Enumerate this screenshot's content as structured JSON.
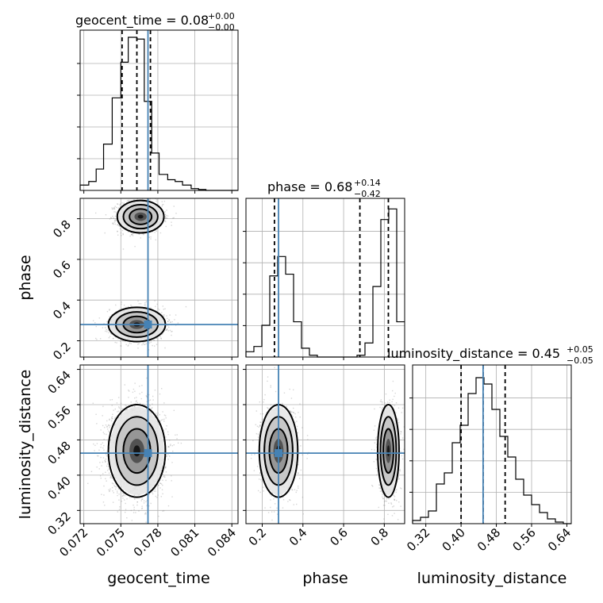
{
  "chart_data": {
    "type": "corner",
    "grid": true,
    "truth_color": "#4682b4",
    "truth": {
      "geocent_time": 0.0772,
      "phase": 0.28,
      "luminosity_distance": 0.45
    },
    "parameters": [
      {
        "name": "geocent_time",
        "xlabel": "geocent_time",
        "title": {
          "prefix": "geocent_time = ",
          "value": "0.08",
          "plus": "+0.00",
          "minus": "−0.00"
        },
        "range": [
          0.0717,
          0.0845
        ],
        "ticks": [
          0.072,
          0.075,
          0.078,
          0.081,
          0.084
        ],
        "tick_labels": [
          "0.072",
          "0.075",
          "0.078",
          "0.081",
          "0.084"
        ],
        "quantiles": [
          0.0751,
          0.0763,
          0.0774
        ],
        "hist_bins": [
          0.0717,
          0.0724,
          0.073,
          0.0736,
          0.0743,
          0.075,
          0.0756,
          0.0763,
          0.0769,
          0.0775,
          0.0781,
          0.0788,
          0.0794,
          0.08,
          0.0807,
          0.0813,
          0.0819,
          0.0826,
          0.0832,
          0.0838,
          0.0845
        ],
        "hist_counts": [
          3,
          5,
          12,
          26,
          52,
          72,
          86,
          85,
          50,
          21,
          9,
          6,
          5,
          3,
          1,
          0.5,
          0,
          0,
          0,
          0
        ],
        "hist_ymax": 90
      },
      {
        "name": "phase",
        "xlabel": "phase",
        "ylabel": "phase",
        "title": {
          "prefix": "phase = ",
          "value": "0.68",
          "plus": "+0.14",
          "minus": "−0.42"
        },
        "range": [
          0.12,
          0.9
        ],
        "ticks": [
          0.2,
          0.4,
          0.6,
          0.8
        ],
        "tick_labels": [
          "0.2",
          "0.4",
          "0.6",
          "0.8"
        ],
        "quantiles": [
          0.26,
          0.68,
          0.82
        ],
        "hist_bins": [
          0.12,
          0.159,
          0.198,
          0.237,
          0.276,
          0.315,
          0.354,
          0.393,
          0.432,
          0.471,
          0.51,
          0.549,
          0.588,
          0.627,
          0.666,
          0.705,
          0.744,
          0.783,
          0.822,
          0.861,
          0.9
        ],
        "hist_counts": [
          3,
          6,
          18,
          46,
          57,
          47,
          20,
          5,
          1,
          0,
          0,
          0,
          0,
          0,
          1,
          8,
          40,
          78,
          84,
          20
        ],
        "hist_ymax": 90
      },
      {
        "name": "luminosity_distance",
        "xlabel": "luminosity_distance",
        "ylabel": "luminosity_distance",
        "title": {
          "prefix": "luminosity_distance = ",
          "value": "0.45",
          "plus": "+0.05",
          "minus": "−0.05"
        },
        "range": [
          0.29,
          0.65
        ],
        "ticks": [
          0.32,
          0.4,
          0.48,
          0.56,
          0.64
        ],
        "tick_labels": [
          "0.32",
          "0.40",
          "0.48",
          "0.56",
          "0.64"
        ],
        "quantiles": [
          0.4,
          0.45,
          0.5
        ],
        "hist_bins": [
          0.29,
          0.308,
          0.326,
          0.344,
          0.362,
          0.38,
          0.398,
          0.416,
          0.434,
          0.452,
          0.47,
          0.488,
          0.506,
          0.524,
          0.542,
          0.56,
          0.578,
          0.596,
          0.614,
          0.632,
          0.65
        ],
        "hist_counts": [
          2,
          4,
          8,
          25,
          32,
          51,
          62,
          82,
          92,
          88,
          72,
          55,
          42,
          28,
          18,
          12,
          7,
          3,
          1,
          0
        ],
        "hist_ymax": 100
      }
    ],
    "pairs": [
      {
        "x": "geocent_time",
        "y": "phase",
        "blobs": [
          {
            "cx": 0.0766,
            "cy": 0.81,
            "sx": 0.0009,
            "sy": 0.038,
            "n": 1400
          },
          {
            "cx": 0.0763,
            "cy": 0.28,
            "sx": 0.0011,
            "sy": 0.04,
            "n": 1400
          }
        ]
      },
      {
        "x": "geocent_time",
        "y": "luminosity_distance",
        "blobs": [
          {
            "cx": 0.0763,
            "cy": 0.455,
            "sx": 0.0011,
            "sy": 0.05,
            "n": 2600
          }
        ]
      },
      {
        "x": "phase",
        "y": "luminosity_distance",
        "blobs": [
          {
            "cx": 0.28,
            "cy": 0.455,
            "sx": 0.045,
            "sy": 0.05,
            "n": 1300
          },
          {
            "cx": 0.82,
            "cy": 0.455,
            "sx": 0.025,
            "sy": 0.05,
            "n": 1300
          }
        ]
      }
    ]
  }
}
